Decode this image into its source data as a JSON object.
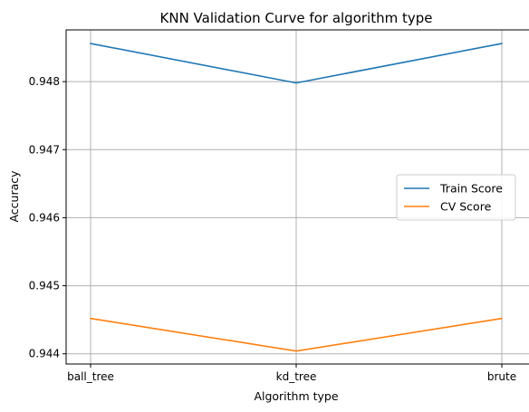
{
  "chart_data": {
    "type": "line",
    "title": "KNN Validation Curve for algorithm type",
    "xlabel": "Algorithm type",
    "ylabel": "Accuracy",
    "categories": [
      "ball_tree",
      "kd_tree",
      "brute"
    ],
    "ylim": [
      0.94385,
      0.94876
    ],
    "yticks": [
      0.944,
      0.945,
      0.946,
      0.947,
      0.948
    ],
    "ytick_labels": [
      "0.944",
      "0.945",
      "0.946",
      "0.947",
      "0.948"
    ],
    "grid": true,
    "legend_position": "center-right",
    "series": [
      {
        "name": "Train Score",
        "color": "#1f77b4",
        "values": [
          0.94856,
          0.94798,
          0.94856
        ]
      },
      {
        "name": "CV Score",
        "color": "#ff7f0e",
        "values": [
          0.94452,
          0.94404,
          0.94452
        ]
      }
    ]
  }
}
